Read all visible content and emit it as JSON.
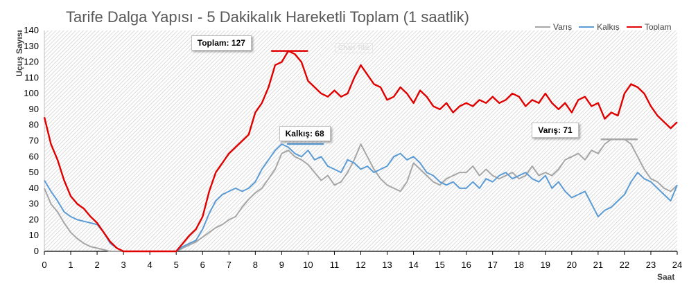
{
  "chart_data": {
    "type": "line",
    "title": "Tarife Dalga Yapısı - 5 Dakikalık Hareketli Toplam (1 saatlik)",
    "xlabel": "Saat",
    "ylabel": "Uçuş Sayısı",
    "xlim": [
      0,
      24
    ],
    "ylim": [
      0,
      140
    ],
    "xticks": [
      "0",
      "1",
      "2",
      "3",
      "4",
      "5",
      "6",
      "7",
      "8",
      "9",
      "10",
      "11",
      "12",
      "13",
      "14",
      "15",
      "16",
      "17",
      "18",
      "19",
      "20",
      "21",
      "22",
      "23",
      "24"
    ],
    "yticks": [
      "0",
      "10",
      "20",
      "30",
      "40",
      "50",
      "60",
      "70",
      "80",
      "90",
      "100",
      "110",
      "120",
      "130",
      "140"
    ],
    "grid": "hatched-background",
    "legend_position": "top-right",
    "ghost_label": "Chart Title",
    "series": [
      {
        "name": "Varış",
        "color": "#a6a6a6",
        "x": [
          0,
          0.25,
          0.5,
          0.75,
          1,
          1.25,
          1.5,
          1.75,
          2,
          2.25,
          2.5,
          2.75,
          3,
          3.5,
          4,
          4.5,
          5,
          5.25,
          5.5,
          5.75,
          6,
          6.25,
          6.5,
          6.75,
          7,
          7.25,
          7.5,
          7.75,
          8,
          8.25,
          8.5,
          8.75,
          9,
          9.25,
          9.5,
          9.75,
          10,
          10.25,
          10.5,
          10.75,
          11,
          11.25,
          11.5,
          11.75,
          12,
          12.25,
          12.5,
          12.75,
          13,
          13.25,
          13.5,
          13.75,
          14,
          14.25,
          14.5,
          14.75,
          15,
          15.25,
          15.5,
          15.75,
          16,
          16.25,
          16.5,
          16.75,
          17,
          17.25,
          17.5,
          17.75,
          18,
          18.25,
          18.5,
          18.75,
          19,
          19.25,
          19.5,
          19.75,
          20,
          20.25,
          20.5,
          20.75,
          21,
          21.25,
          21.5,
          21.75,
          22,
          22.25,
          22.5,
          22.75,
          23,
          23.25,
          23.5,
          23.75,
          24
        ],
        "values": [
          40,
          30,
          25,
          18,
          12,
          8,
          5,
          3,
          2,
          1,
          0,
          0,
          0,
          0,
          0,
          0,
          0,
          2,
          4,
          6,
          9,
          12,
          15,
          17,
          20,
          22,
          28,
          33,
          37,
          40,
          46,
          52,
          62,
          64,
          60,
          58,
          55,
          50,
          45,
          48,
          42,
          44,
          50,
          58,
          68,
          60,
          52,
          46,
          42,
          40,
          38,
          44,
          56,
          52,
          48,
          44,
          42,
          46,
          48,
          50,
          50,
          54,
          48,
          52,
          48,
          46,
          48,
          50,
          46,
          48,
          54,
          48,
          50,
          48,
          52,
          58,
          60,
          62,
          58,
          64,
          62,
          68,
          71,
          71,
          71,
          68,
          60,
          52,
          46,
          44,
          40,
          38,
          42
        ],
        "annotation": {
          "label": "Varış: 71",
          "x": 21.8,
          "y": 71
        }
      },
      {
        "name": "Kalkış",
        "color": "#5b9bd5",
        "x": [
          0,
          0.25,
          0.5,
          0.75,
          1,
          1.25,
          1.5,
          1.75,
          2,
          2.25,
          2.5,
          2.75,
          3,
          3.5,
          4,
          4.5,
          5,
          5.25,
          5.5,
          5.75,
          6,
          6.25,
          6.5,
          6.75,
          7,
          7.25,
          7.5,
          7.75,
          8,
          8.25,
          8.5,
          8.75,
          9,
          9.25,
          9.5,
          9.75,
          10,
          10.25,
          10.5,
          10.75,
          11,
          11.25,
          11.5,
          11.75,
          12,
          12.25,
          12.5,
          12.75,
          13,
          13.25,
          13.5,
          13.75,
          14,
          14.25,
          14.5,
          14.75,
          15,
          15.25,
          15.5,
          15.75,
          16,
          16.25,
          16.5,
          16.75,
          17,
          17.25,
          17.5,
          17.75,
          18,
          18.25,
          18.5,
          18.75,
          19,
          19.25,
          19.5,
          19.75,
          20,
          20.25,
          20.5,
          20.75,
          21,
          21.25,
          21.5,
          21.75,
          22,
          22.25,
          22.5,
          22.75,
          23,
          23.25,
          23.5,
          23.75,
          24
        ],
        "values": [
          45,
          38,
          32,
          25,
          22,
          20,
          19,
          18,
          17,
          12,
          5,
          2,
          0,
          0,
          0,
          0,
          0,
          3,
          5,
          7,
          14,
          24,
          32,
          36,
          38,
          40,
          38,
          40,
          44,
          52,
          58,
          64,
          68,
          66,
          62,
          60,
          64,
          58,
          60,
          54,
          52,
          50,
          58,
          56,
          52,
          54,
          50,
          52,
          54,
          60,
          62,
          58,
          60,
          56,
          50,
          48,
          44,
          42,
          44,
          40,
          40,
          44,
          40,
          46,
          44,
          48,
          50,
          46,
          48,
          50,
          46,
          44,
          48,
          40,
          44,
          38,
          34,
          36,
          38,
          30,
          22,
          26,
          28,
          32,
          36,
          44,
          50,
          46,
          44,
          40,
          36,
          32,
          42
        ],
        "annotation": {
          "label": "Kalkış: 68",
          "x": 9.9,
          "y": 68
        }
      },
      {
        "name": "Toplam",
        "color": "#e00000",
        "x": [
          0,
          0.25,
          0.5,
          0.75,
          1,
          1.25,
          1.5,
          1.75,
          2,
          2.25,
          2.5,
          2.75,
          3,
          3.5,
          4,
          4.5,
          5,
          5.25,
          5.5,
          5.75,
          6,
          6.25,
          6.5,
          6.75,
          7,
          7.25,
          7.5,
          7.75,
          8,
          8.25,
          8.5,
          8.75,
          9,
          9.25,
          9.5,
          9.75,
          10,
          10.25,
          10.5,
          10.75,
          11,
          11.25,
          11.5,
          11.75,
          12,
          12.25,
          12.5,
          12.75,
          13,
          13.25,
          13.5,
          13.75,
          14,
          14.25,
          14.5,
          14.75,
          15,
          15.25,
          15.5,
          15.75,
          16,
          16.25,
          16.5,
          16.75,
          17,
          17.25,
          17.5,
          17.75,
          18,
          18.25,
          18.5,
          18.75,
          19,
          19.25,
          19.5,
          19.75,
          20,
          20.25,
          20.5,
          20.75,
          21,
          21.25,
          21.5,
          21.75,
          22,
          22.25,
          22.5,
          22.75,
          23,
          23.25,
          23.5,
          23.75,
          24
        ],
        "values": [
          85,
          68,
          58,
          45,
          35,
          30,
          27,
          22,
          18,
          12,
          6,
          2,
          0,
          0,
          0,
          0,
          0,
          5,
          10,
          14,
          22,
          38,
          50,
          56,
          62,
          66,
          70,
          74,
          88,
          94,
          104,
          118,
          120,
          127,
          125,
          120,
          108,
          104,
          100,
          98,
          102,
          98,
          100,
          110,
          118,
          112,
          106,
          104,
          96,
          98,
          104,
          100,
          94,
          102,
          98,
          92,
          90,
          94,
          88,
          92,
          94,
          92,
          96,
          94,
          98,
          94,
          96,
          100,
          98,
          92,
          96,
          94,
          100,
          94,
          90,
          94,
          88,
          96,
          98,
          92,
          94,
          84,
          88,
          86,
          100,
          106,
          104,
          100,
          92,
          86,
          82,
          78,
          82
        ],
        "annotation": {
          "label": "Toplam: 127",
          "x": 9.3,
          "y": 127
        }
      }
    ]
  }
}
